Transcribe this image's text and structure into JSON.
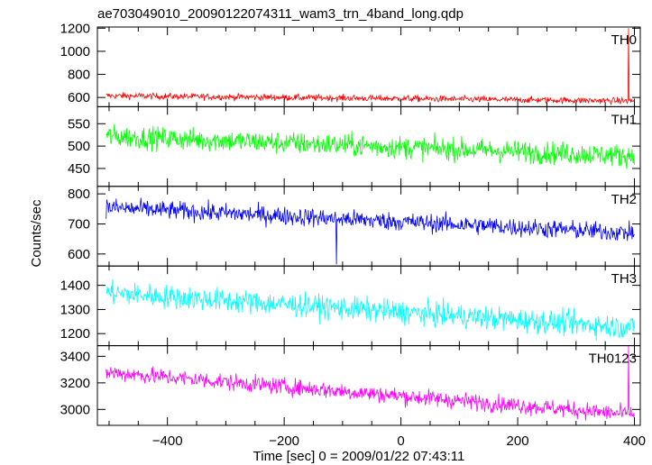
{
  "chart_data": {
    "type": "line",
    "title": "ae703049010_20090122074311_wam3_trn_4band_long.qdp",
    "xlabel": "Time [sec] 0 = 2009/01/22 07:43:11",
    "ylabel": "Counts/sec",
    "xlim": [
      -520,
      410
    ],
    "xticks": [
      -400,
      -200,
      0,
      200,
      400
    ],
    "xtick_labels": [
      "−400",
      "−200",
      "0",
      "200",
      "400"
    ],
    "grid": false,
    "panels": [
      {
        "label": "TH0",
        "color": "#ff0000",
        "ylim": [
          520,
          1210
        ],
        "yticks": [
          600,
          800,
          1000,
          1200
        ],
        "trend": {
          "start": 615,
          "end": 570
        },
        "noise": 20,
        "spikes": [
          {
            "x": 390,
            "value": 1200
          }
        ]
      },
      {
        "label": "TH1",
        "color": "#00ff00",
        "ylim": [
          410,
          588
        ],
        "yticks": [
          450,
          500,
          550
        ],
        "trend": {
          "start": 522,
          "end": 478
        },
        "noise": 18,
        "spikes": []
      },
      {
        "label": "TH2",
        "color": "#0000ff",
        "ylim": [
          560,
          825
        ],
        "yticks": [
          600,
          700,
          800
        ],
        "trend": {
          "start": 755,
          "end": 670
        },
        "noise": 22,
        "spikes": [
          {
            "x": -110,
            "value": 565
          }
        ]
      },
      {
        "label": "TH3",
        "color": "#00ffff",
        "ylim": [
          1150,
          1480
        ],
        "yticks": [
          1200,
          1300,
          1400
        ],
        "trend": {
          "start": 1370,
          "end": 1225
        },
        "noise": 35,
        "spikes": []
      },
      {
        "label": "TH0123",
        "color": "#ff00ff",
        "ylim": [
          2880,
          3480
        ],
        "yticks": [
          3000,
          3200,
          3400
        ],
        "trend": {
          "start": 3280,
          "end": 2960
        },
        "noise": 45,
        "spikes": [
          {
            "x": 390,
            "value": 3480
          }
        ]
      }
    ]
  }
}
